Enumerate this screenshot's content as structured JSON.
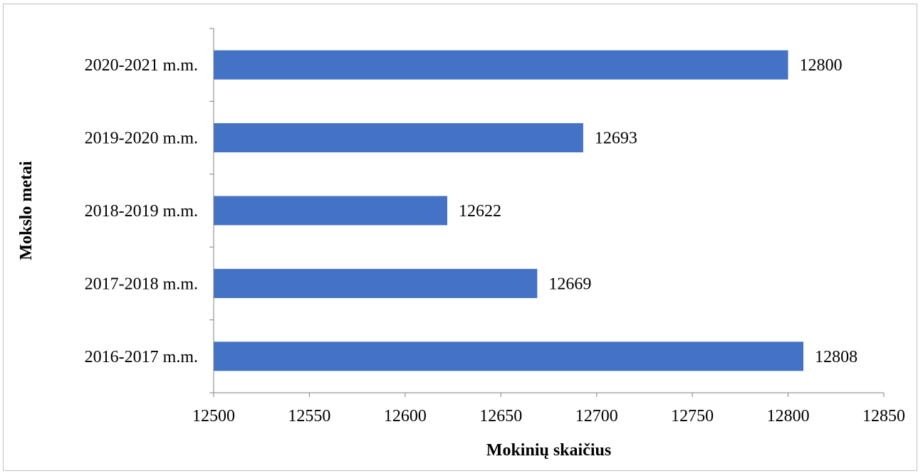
{
  "chart_data": {
    "type": "bar",
    "orientation": "horizontal",
    "categories": [
      "2020-2021 m.m.",
      "2019-2020 m.m.",
      "2018-2019 m.m.",
      "2017-2018 m.m.",
      "2016-2017 m.m."
    ],
    "values": [
      12800,
      12693,
      12622,
      12669,
      12808
    ],
    "data_labels": [
      "12800",
      "12693",
      "12622",
      "12669",
      "12808"
    ],
    "xlabel": "Mokinių skaičius",
    "ylabel": "Mokslo metai",
    "xlim": [
      12500,
      12850
    ],
    "xticks": [
      12500,
      12550,
      12600,
      12650,
      12700,
      12750,
      12800,
      12850
    ],
    "xtick_labels": [
      "12500",
      "12550",
      "12600",
      "12650",
      "12700",
      "12750",
      "12800",
      "12850"
    ],
    "grid": false,
    "legend": "none",
    "bar_color": "#4472C4"
  }
}
